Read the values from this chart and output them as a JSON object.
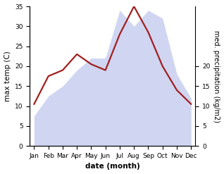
{
  "months": [
    "Jan",
    "Feb",
    "Mar",
    "Apr",
    "May",
    "Jun",
    "Jul",
    "Aug",
    "Sep",
    "Oct",
    "Nov",
    "Dec"
  ],
  "max_temp": [
    10.5,
    17.5,
    19.0,
    23.0,
    20.5,
    19.0,
    28.0,
    35.0,
    28.5,
    20.0,
    14.0,
    10.5
  ],
  "precipitation": [
    7.5,
    12.5,
    15.0,
    19.0,
    22.0,
    22.0,
    34.0,
    30.0,
    34.0,
    32.0,
    18.0,
    12.0
  ],
  "temp_ylim": [
    0,
    35
  ],
  "precip_ylim": [
    0,
    35
  ],
  "temp_yticks": [
    0,
    5,
    10,
    15,
    20,
    25,
    30,
    35
  ],
  "precip_yticks": [
    0,
    5,
    10,
    15,
    20
  ],
  "precip_ytick_labels": [
    "0",
    "5",
    "10",
    "15",
    "20"
  ],
  "area_color": "#aab4e8",
  "area_alpha": 0.55,
  "line_color": "#a02020",
  "line_width": 1.6,
  "xlabel": "date (month)",
  "ylabel_left": "max temp (C)",
  "ylabel_right": "med. precipitation (kg/m2)",
  "bg_color": "#ffffff",
  "label_fontsize": 7.5,
  "tick_fontsize": 6.5
}
